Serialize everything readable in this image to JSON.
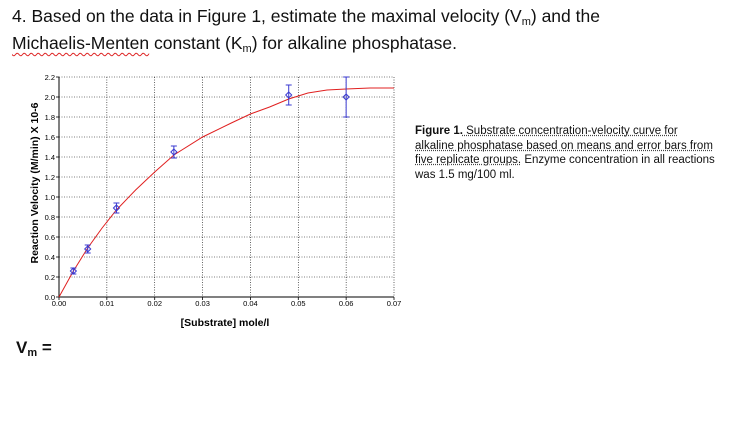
{
  "question": {
    "prefix": "4. Based on the data in Figure 1, estimate the maximal velocity (V",
    "sub_m": "m",
    "middle": ") and the",
    "line2_a": "Michaelis-Menten",
    "line2_b": " constant (K",
    "sub_m2": "m",
    "line2_c": ") for alkaline phosphatase."
  },
  "caption": {
    "fig_label": "Figure 1.",
    "text_a": " Substrate concentration-velocity curve for alkaline phosphatase based on means and error bars from five replicate groups.",
    "text_b": " Enzyme concentration in all reactions was 1.5 mg/100 ml."
  },
  "answer": {
    "label": "V",
    "sub": "m",
    "suffix": " ="
  },
  "colors": {
    "curve": "#e02020",
    "points": "#3a3ad0",
    "error_bars": "#3a3ad0",
    "grid": "#000000"
  },
  "chart_data": {
    "type": "scatter",
    "xlabel": "[Substrate] mole/l",
    "ylabel": "Reaction Velocity (M/min) X 10-6",
    "xlim": [
      0,
      0.07
    ],
    "ylim": [
      0,
      2.2
    ],
    "x_ticks": [
      "0.00",
      "0.01",
      "0.02",
      "0.03",
      "0.04",
      "0.05",
      "0.06",
      "0.07"
    ],
    "y_ticks": [
      "0.0",
      "0.2",
      "0.4",
      "0.6",
      "0.8",
      "1.0",
      "1.2",
      "1.4",
      "1.6",
      "1.8",
      "2.0",
      "2.2"
    ],
    "grid": true,
    "points": [
      {
        "x": 0.003,
        "y": 0.26,
        "err": 0.03
      },
      {
        "x": 0.006,
        "y": 0.48,
        "err": 0.04
      },
      {
        "x": 0.012,
        "y": 0.89,
        "err": 0.05
      },
      {
        "x": 0.024,
        "y": 1.45,
        "err": 0.06
      },
      {
        "x": 0.048,
        "y": 2.02,
        "err": 0.1
      },
      {
        "x": 0.06,
        "y": 2.0,
        "err": 0.2
      }
    ],
    "curve": [
      [
        0.0,
        0.0
      ],
      [
        0.003,
        0.26
      ],
      [
        0.006,
        0.49
      ],
      [
        0.009,
        0.69
      ],
      [
        0.012,
        0.87
      ],
      [
        0.016,
        1.07
      ],
      [
        0.02,
        1.25
      ],
      [
        0.024,
        1.42
      ],
      [
        0.03,
        1.6
      ],
      [
        0.036,
        1.74
      ],
      [
        0.04,
        1.83
      ],
      [
        0.044,
        1.9
      ],
      [
        0.048,
        1.98
      ],
      [
        0.052,
        2.04
      ],
      [
        0.056,
        2.07
      ],
      [
        0.06,
        2.08
      ],
      [
        0.065,
        2.09
      ],
      [
        0.07,
        2.09
      ]
    ]
  }
}
